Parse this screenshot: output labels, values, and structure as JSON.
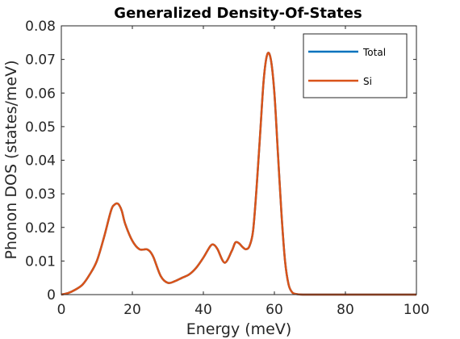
{
  "chart_data": {
    "type": "line",
    "title": "Generalized Density-Of-States",
    "xlabel": "Energy (meV)",
    "ylabel": "Phonon DOS (states/meV)",
    "xlim": [
      0,
      100
    ],
    "ylim": [
      0,
      0.08
    ],
    "xticks": [
      0,
      20,
      40,
      60,
      80,
      100
    ],
    "yticks": [
      0,
      0.01,
      0.02,
      0.03,
      0.04,
      0.05,
      0.06,
      0.07,
      0.08
    ],
    "xtick_labels": [
      "0",
      "20",
      "40",
      "60",
      "80",
      "100"
    ],
    "ytick_labels": [
      "0",
      "0.01",
      "0.02",
      "0.03",
      "0.04",
      "0.05",
      "0.06",
      "0.07",
      "0.08"
    ],
    "grid": false,
    "legend_position": "top-right",
    "x": [
      0,
      2,
      4,
      6,
      8,
      10,
      12,
      14,
      15,
      16,
      17,
      18,
      20,
      22,
      24,
      25,
      26,
      28,
      30,
      32,
      34,
      36,
      38,
      40,
      42,
      43,
      44,
      46,
      48,
      49,
      50,
      51,
      52,
      53,
      54,
      55,
      56,
      57,
      58,
      59,
      60,
      61,
      62,
      63,
      64,
      65,
      66,
      68,
      70,
      80,
      90,
      100
    ],
    "series": [
      {
        "name": "Total",
        "color": "#0072BD",
        "values": [
          0,
          0.0005,
          0.0015,
          0.003,
          0.006,
          0.01,
          0.017,
          0.025,
          0.0268,
          0.027,
          0.025,
          0.021,
          0.016,
          0.0135,
          0.0135,
          0.0128,
          0.011,
          0.0055,
          0.0035,
          0.004,
          0.005,
          0.006,
          0.008,
          0.011,
          0.0145,
          0.0148,
          0.0135,
          0.0095,
          0.013,
          0.0155,
          0.0153,
          0.0142,
          0.0135,
          0.0145,
          0.019,
          0.032,
          0.048,
          0.064,
          0.0715,
          0.07,
          0.06,
          0.042,
          0.024,
          0.01,
          0.003,
          0.0007,
          0.0002,
          0,
          0,
          0,
          0,
          0
        ]
      },
      {
        "name": "Si",
        "color": "#D95319",
        "values": [
          0,
          0.0005,
          0.0015,
          0.003,
          0.006,
          0.01,
          0.017,
          0.025,
          0.0268,
          0.027,
          0.025,
          0.021,
          0.016,
          0.0135,
          0.0135,
          0.0128,
          0.011,
          0.0055,
          0.0035,
          0.004,
          0.005,
          0.006,
          0.008,
          0.011,
          0.0145,
          0.0148,
          0.0135,
          0.0095,
          0.013,
          0.0155,
          0.0153,
          0.0142,
          0.0135,
          0.0145,
          0.019,
          0.032,
          0.048,
          0.064,
          0.0715,
          0.07,
          0.06,
          0.042,
          0.024,
          0.01,
          0.003,
          0.0007,
          0.0002,
          0,
          0,
          0,
          0,
          0
        ]
      }
    ]
  }
}
